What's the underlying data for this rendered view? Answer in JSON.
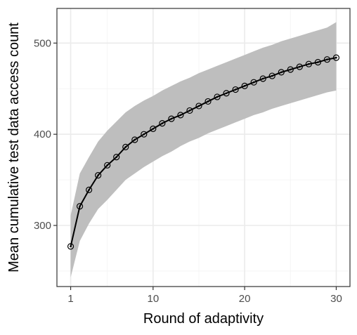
{
  "chart_data": {
    "type": "line",
    "title": "",
    "xlabel": "Round of adaptivity",
    "ylabel": "Mean cumulative test data access count",
    "xlim": [
      -0.5,
      31.5
    ],
    "ylim": [
      233,
      538
    ],
    "x_ticks": [
      1,
      10,
      20,
      30
    ],
    "y_ticks": [
      300,
      400,
      500
    ],
    "x_minor_ticks": [
      5,
      15,
      25
    ],
    "y_minor_ticks": [
      250,
      350,
      450
    ],
    "grid": true,
    "legend": "none",
    "colors": {
      "line": "#000000",
      "ribbon": "#bebebe",
      "grid_major": "#ebebeb",
      "grid_minor": "#f5f5f5",
      "panel_border": "#333333",
      "tick_text": "#4d4d4d"
    },
    "series": [
      {
        "x": [
          1,
          2,
          3,
          4,
          5,
          6,
          7,
          8,
          9,
          10,
          11,
          12,
          13,
          14,
          15,
          16,
          17,
          18,
          19,
          20,
          21,
          22,
          23,
          24,
          25,
          26,
          27,
          28,
          29,
          30
        ],
        "y": [
          277,
          321,
          339,
          355,
          366,
          375,
          386,
          394,
          400,
          406,
          412,
          417,
          421,
          426,
          431,
          436,
          441,
          445,
          449,
          453,
          457,
          461,
          464,
          468,
          471,
          474,
          477,
          479,
          482,
          484
        ],
        "lower": [
          243,
          283,
          302,
          318,
          328,
          339,
          350,
          357,
          364,
          370,
          376,
          381,
          387,
          392,
          396,
          401,
          405,
          409,
          413,
          417,
          421,
          424,
          428,
          431,
          434,
          437,
          440,
          443,
          446,
          448
        ],
        "upper": [
          311,
          357,
          375,
          392,
          404,
          414,
          424,
          431,
          437,
          442,
          448,
          453,
          458,
          462,
          467,
          471,
          475,
          479,
          483,
          487,
          491,
          495,
          498,
          502,
          505,
          508,
          511,
          514,
          517,
          523
        ]
      }
    ]
  }
}
